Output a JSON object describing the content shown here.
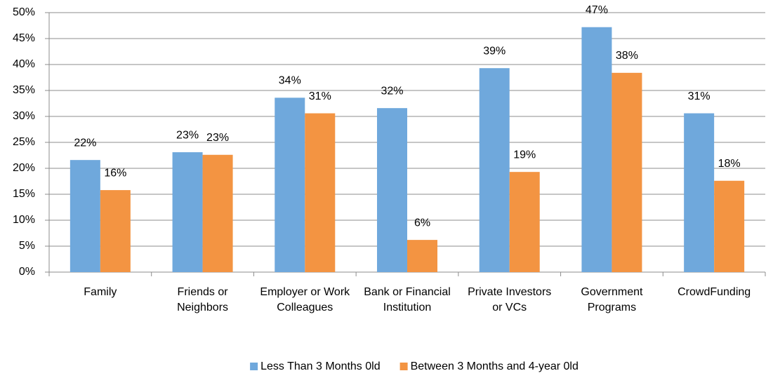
{
  "chart_data": {
    "type": "bar",
    "categories": [
      "Family",
      "Friends or Neighbors",
      "Employer or Work Colleagues",
      "Bank or Financial Institution",
      "Private Investors or VCs",
      "Government Programs",
      "CrowdFunding"
    ],
    "series": [
      {
        "name": "Less Than 3 Months 0ld",
        "color": "#6fa8dc",
        "values": [
          21.6,
          23.1,
          33.6,
          31.6,
          39.3,
          47.2,
          30.6
        ],
        "value_labels": [
          "22%",
          "23%",
          "34%",
          "32%",
          "39%",
          "47%",
          "31%"
        ]
      },
      {
        "name": "Between 3 Months and 4-year 0ld",
        "color": "#f39442",
        "values": [
          15.8,
          22.6,
          30.6,
          6.2,
          19.3,
          38.4,
          17.6
        ],
        "value_labels": [
          "16%",
          "23%",
          "31%",
          "6%",
          "19%",
          "38%",
          "18%"
        ]
      }
    ],
    "ylim": [
      0,
      50
    ],
    "yticks": [
      {
        "value": 0,
        "label": "0%"
      },
      {
        "value": 5,
        "label": "5%"
      },
      {
        "value": 10,
        "label": "10%"
      },
      {
        "value": 15,
        "label": "15%"
      },
      {
        "value": 20,
        "label": "20%"
      },
      {
        "value": 25,
        "label": "25%"
      },
      {
        "value": 30,
        "label": "30%"
      },
      {
        "value": 35,
        "label": "35%"
      },
      {
        "value": 40,
        "label": "40%"
      },
      {
        "value": 45,
        "label": "45%"
      },
      {
        "value": 50,
        "label": "50%"
      }
    ],
    "grid": true,
    "legend": "bottom"
  }
}
